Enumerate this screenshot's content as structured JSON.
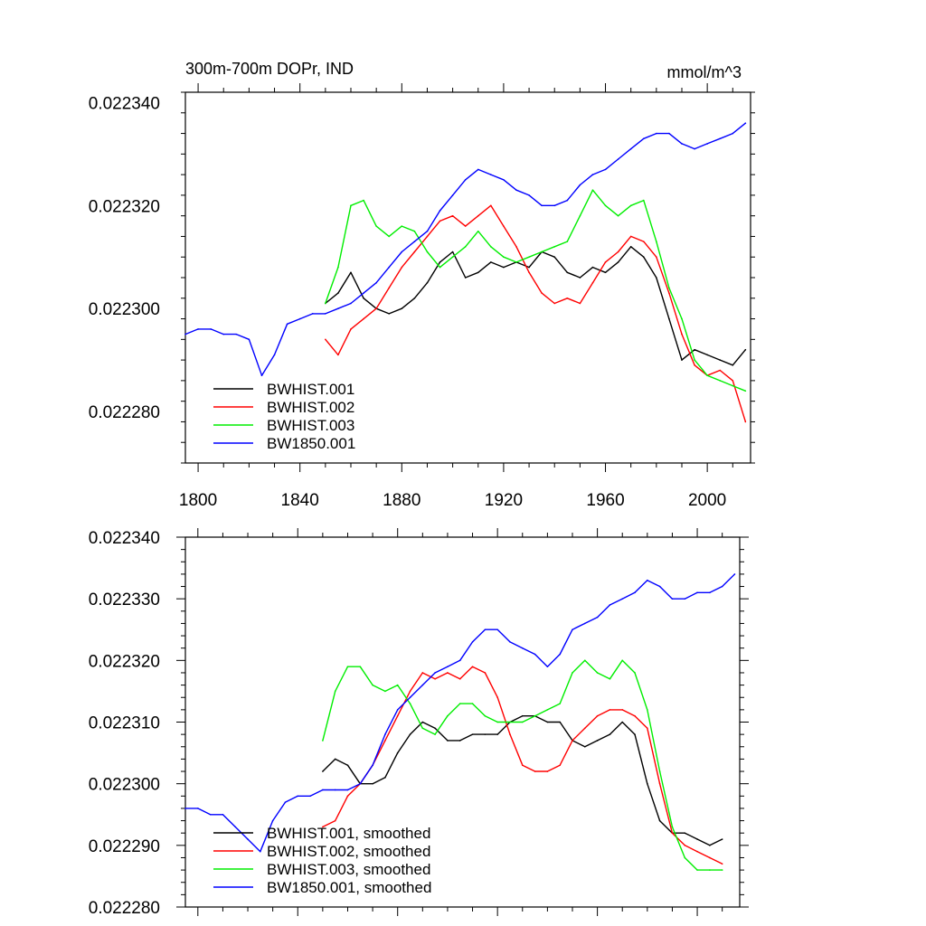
{
  "chart_data": [
    {
      "type": "line",
      "title": "300m-700m DOPr, IND",
      "units": "mmol/m^3",
      "xlim": [
        1795,
        2017
      ],
      "ylim": [
        0.02227,
        0.022342
      ],
      "yticks": [
        0.02228,
        0.0223,
        0.02232,
        0.02234
      ],
      "ytick_labels": [
        "0.022280",
        "0.022300",
        "0.022320",
        "0.022340"
      ],
      "xticks": [
        1800,
        1840,
        1880,
        1920,
        1960,
        2000
      ],
      "xtick_labels": [
        "1800",
        "1840",
        "1880",
        "1920",
        "1960",
        "2000"
      ],
      "legend": "bottom-left",
      "series": [
        {
          "name": "BWHIST.001",
          "color": "#000000",
          "x": [
            1850,
            1855,
            1860,
            1865,
            1870,
            1875,
            1880,
            1885,
            1890,
            1895,
            1900,
            1905,
            1910,
            1915,
            1920,
            1925,
            1930,
            1935,
            1940,
            1945,
            1950,
            1955,
            1960,
            1965,
            1970,
            1975,
            1980,
            1985,
            1990,
            1995,
            2000,
            2005,
            2010,
            2015
          ],
          "y": [
            0.022301,
            0.022303,
            0.022307,
            0.022302,
            0.0223,
            0.022299,
            0.0223,
            0.022302,
            0.022305,
            0.022309,
            0.022311,
            0.022306,
            0.022307,
            0.022309,
            0.022308,
            0.022309,
            0.022308,
            0.022311,
            0.02231,
            0.022307,
            0.022306,
            0.022308,
            0.022307,
            0.022309,
            0.022312,
            0.02231,
            0.022306,
            0.022298,
            0.02229,
            0.022292,
            0.022291,
            0.02229,
            0.022289,
            0.022292
          ]
        },
        {
          "name": "BWHIST.002",
          "color": "#ff0000",
          "x": [
            1850,
            1855,
            1860,
            1865,
            1870,
            1875,
            1880,
            1885,
            1890,
            1895,
            1900,
            1905,
            1910,
            1915,
            1920,
            1925,
            1930,
            1935,
            1940,
            1945,
            1950,
            1955,
            1960,
            1965,
            1970,
            1975,
            1980,
            1985,
            1990,
            1995,
            2000,
            2005,
            2010,
            2015
          ],
          "y": [
            0.022294,
            0.022291,
            0.022296,
            0.022298,
            0.0223,
            0.022304,
            0.022308,
            0.022311,
            0.022314,
            0.022317,
            0.022318,
            0.022316,
            0.022318,
            0.02232,
            0.022316,
            0.022312,
            0.022307,
            0.022303,
            0.022301,
            0.022302,
            0.022301,
            0.022305,
            0.022309,
            0.022311,
            0.022314,
            0.022313,
            0.02231,
            0.022303,
            0.022295,
            0.022289,
            0.022287,
            0.022288,
            0.022286,
            0.022278
          ]
        },
        {
          "name": "BWHIST.003",
          "color": "#00ee00",
          "x": [
            1850,
            1855,
            1860,
            1865,
            1870,
            1875,
            1880,
            1885,
            1890,
            1895,
            1900,
            1905,
            1910,
            1915,
            1920,
            1925,
            1930,
            1935,
            1940,
            1945,
            1950,
            1955,
            1960,
            1965,
            1970,
            1975,
            1980,
            1985,
            1990,
            1995,
            2000,
            2005,
            2010,
            2015
          ],
          "y": [
            0.022301,
            0.022308,
            0.02232,
            0.022321,
            0.022316,
            0.022314,
            0.022316,
            0.022315,
            0.022311,
            0.022308,
            0.02231,
            0.022312,
            0.022315,
            0.022312,
            0.02231,
            0.022309,
            0.02231,
            0.022311,
            0.022312,
            0.022313,
            0.022318,
            0.022323,
            0.02232,
            0.022318,
            0.02232,
            0.022321,
            0.022313,
            0.022304,
            0.022298,
            0.02229,
            0.022287,
            0.022286,
            0.022285,
            0.022284
          ]
        },
        {
          "name": "BW1850.001",
          "color": "#0000ff",
          "x": [
            1795,
            1800,
            1805,
            1810,
            1815,
            1820,
            1825,
            1830,
            1835,
            1840,
            1845,
            1850,
            1855,
            1860,
            1865,
            1870,
            1875,
            1880,
            1885,
            1890,
            1895,
            1900,
            1905,
            1910,
            1915,
            1920,
            1925,
            1930,
            1935,
            1940,
            1945,
            1950,
            1955,
            1960,
            1965,
            1970,
            1975,
            1980,
            1985,
            1990,
            1995,
            2000,
            2005,
            2010,
            2015
          ],
          "y": [
            0.022295,
            0.022296,
            0.022296,
            0.022295,
            0.022295,
            0.022294,
            0.022287,
            0.022291,
            0.022297,
            0.022298,
            0.022299,
            0.022299,
            0.0223,
            0.022301,
            0.022303,
            0.022305,
            0.022308,
            0.022311,
            0.022313,
            0.022315,
            0.022319,
            0.022322,
            0.022325,
            0.022327,
            0.022326,
            0.022325,
            0.022323,
            0.022322,
            0.02232,
            0.02232,
            0.022321,
            0.022324,
            0.022326,
            0.022327,
            0.022329,
            0.022331,
            0.022333,
            0.022334,
            0.022334,
            0.022332,
            0.022331,
            0.022332,
            0.022333,
            0.022334,
            0.022336
          ]
        }
      ]
    },
    {
      "type": "line",
      "xlim": [
        1795,
        2017
      ],
      "ylim": [
        0.02228,
        0.02234
      ],
      "yticks": [
        0.02228,
        0.02229,
        0.0223,
        0.02231,
        0.02232,
        0.02233,
        0.02234
      ],
      "ytick_labels": [
        "0.022280",
        "0.022290",
        "0.022300",
        "0.022310",
        "0.022320",
        "0.022330",
        "0.022340"
      ],
      "xticks": [
        1800,
        1840,
        1880,
        1920,
        1960,
        2000
      ],
      "legend": "bottom-left",
      "series": [
        {
          "name": "BWHIST.001, smoothed",
          "color": "#000000",
          "x": [
            1850,
            1855,
            1860,
            1865,
            1870,
            1875,
            1880,
            1885,
            1890,
            1895,
            1900,
            1905,
            1910,
            1915,
            1920,
            1925,
            1930,
            1935,
            1940,
            1945,
            1950,
            1955,
            1960,
            1965,
            1970,
            1975,
            1980,
            1985,
            1990,
            1995,
            2000,
            2005,
            2010
          ],
          "y": [
            0.022302,
            0.022304,
            0.022303,
            0.0223,
            0.0223,
            0.022301,
            0.022305,
            0.022308,
            0.02231,
            0.022309,
            0.022307,
            0.022307,
            0.022308,
            0.022308,
            0.022308,
            0.02231,
            0.022311,
            0.022311,
            0.02231,
            0.02231,
            0.022307,
            0.022306,
            0.022307,
            0.022308,
            0.02231,
            0.022308,
            0.0223,
            0.022294,
            0.022292,
            0.022292,
            0.022291,
            0.02229,
            0.022291
          ]
        },
        {
          "name": "BWHIST.002, smoothed",
          "color": "#ff0000",
          "x": [
            1850,
            1855,
            1860,
            1865,
            1870,
            1875,
            1880,
            1885,
            1890,
            1895,
            1900,
            1905,
            1910,
            1915,
            1920,
            1925,
            1930,
            1935,
            1940,
            1945,
            1950,
            1955,
            1960,
            1965,
            1970,
            1975,
            1980,
            1985,
            1990,
            1995,
            2000,
            2005,
            2010
          ],
          "y": [
            0.022293,
            0.022294,
            0.022298,
            0.0223,
            0.022303,
            0.022307,
            0.022311,
            0.022315,
            0.022318,
            0.022317,
            0.022318,
            0.022317,
            0.022319,
            0.022318,
            0.022314,
            0.022308,
            0.022303,
            0.022302,
            0.022302,
            0.022303,
            0.022307,
            0.022309,
            0.022311,
            0.022312,
            0.022312,
            0.022311,
            0.022309,
            0.0223,
            0.022292,
            0.02229,
            0.022289,
            0.022288,
            0.022287
          ]
        },
        {
          "name": "BWHIST.003, smoothed",
          "color": "#00ee00",
          "x": [
            1850,
            1855,
            1860,
            1865,
            1870,
            1875,
            1880,
            1885,
            1890,
            1895,
            1900,
            1905,
            1910,
            1915,
            1920,
            1925,
            1930,
            1935,
            1940,
            1945,
            1950,
            1955,
            1960,
            1965,
            1970,
            1975,
            1980,
            1985,
            1990,
            1995,
            2000,
            2005,
            2010
          ],
          "y": [
            0.022307,
            0.022315,
            0.022319,
            0.022319,
            0.022316,
            0.022315,
            0.022316,
            0.022313,
            0.022309,
            0.022308,
            0.022311,
            0.022313,
            0.022313,
            0.022311,
            0.02231,
            0.02231,
            0.02231,
            0.022311,
            0.022312,
            0.022313,
            0.022318,
            0.02232,
            0.022318,
            0.022317,
            0.02232,
            0.022318,
            0.022312,
            0.022302,
            0.022293,
            0.022288,
            0.022286,
            0.022286,
            0.022286
          ]
        },
        {
          "name": "BW1850.001, smoothed",
          "color": "#0000ff",
          "x": [
            1795,
            1800,
            1805,
            1810,
            1815,
            1820,
            1825,
            1830,
            1835,
            1840,
            1845,
            1850,
            1855,
            1860,
            1865,
            1870,
            1875,
            1880,
            1885,
            1890,
            1895,
            1900,
            1905,
            1910,
            1915,
            1920,
            1925,
            1930,
            1935,
            1940,
            1945,
            1950,
            1955,
            1960,
            1965,
            1970,
            1975,
            1980,
            1985,
            1990,
            1995,
            2000,
            2005,
            2010,
            2015
          ],
          "y": [
            0.022296,
            0.022296,
            0.022295,
            0.022295,
            0.022293,
            0.022291,
            0.022289,
            0.022294,
            0.022297,
            0.022298,
            0.022298,
            0.022299,
            0.022299,
            0.022299,
            0.0223,
            0.022303,
            0.022308,
            0.022312,
            0.022314,
            0.022316,
            0.022318,
            0.022319,
            0.02232,
            0.022323,
            0.022325,
            0.022325,
            0.022323,
            0.022322,
            0.022321,
            0.022319,
            0.022321,
            0.022325,
            0.022326,
            0.022327,
            0.022329,
            0.02233,
            0.022331,
            0.022333,
            0.022332,
            0.02233,
            0.02233,
            0.022331,
            0.022331,
            0.022332,
            0.022334
          ]
        }
      ]
    }
  ]
}
